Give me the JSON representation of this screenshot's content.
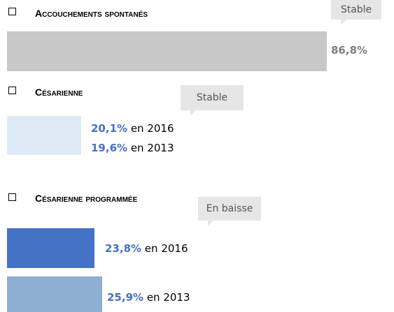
{
  "sections": [
    {
      "title": "Accouchements spontanés",
      "badge": "Stable",
      "items": [
        {
          "value": 86.8,
          "label": "86,8%"
        }
      ]
    },
    {
      "title": "Césarienne",
      "badge": "Stable",
      "items": [
        {
          "value": 20.1,
          "label": "20,1%",
          "year": "en 2016"
        },
        {
          "value": 19.6,
          "label": "19,6%",
          "year": "en 2013"
        }
      ]
    },
    {
      "title": "Césarienne programmée",
      "badge": "En baisse",
      "items": [
        {
          "value": 23.8,
          "label": "23,8%",
          "year": "en 2016"
        },
        {
          "value": 25.9,
          "label": "25,9%",
          "year": "en 2013"
        }
      ]
    }
  ]
}
